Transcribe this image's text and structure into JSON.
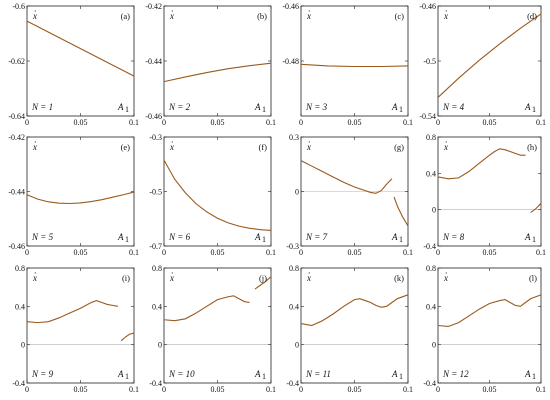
{
  "figure_labels": {
    "xlabel_symbol": "A",
    "xlabel_sub": "1",
    "ylabel_symbol": "x",
    "ylabel_dot": "·",
    "n_prefix": "N = "
  },
  "colors": {
    "series": "#9a5a1e",
    "zero_line": "#b5b5b5",
    "frame": "#222222"
  },
  "chart_data": [
    {
      "panel": "(a)",
      "N": "1",
      "type": "line",
      "xlim": [
        0,
        0.1
      ],
      "ylim": [
        -0.64,
        -0.6
      ],
      "xticks": [
        "0",
        "0.05",
        "0.1"
      ],
      "yticks": [
        "-0.64",
        "-0.62",
        "-0.6"
      ],
      "y_tick_values": [
        -0.64,
        -0.62,
        -0.6
      ],
      "series": [
        {
          "x": [
            0,
            0.02,
            0.04,
            0.06,
            0.08,
            0.1
          ],
          "y": [
            -0.6055,
            -0.6095,
            -0.6135,
            -0.6175,
            -0.6215,
            -0.6255
          ]
        }
      ]
    },
    {
      "panel": "(b)",
      "N": "2",
      "type": "line",
      "xlim": [
        0,
        0.1
      ],
      "ylim": [
        -0.46,
        -0.42
      ],
      "xticks": [
        "0",
        "0.05",
        "0.1"
      ],
      "yticks": [
        "-0.46",
        "-0.44",
        "-0.42"
      ],
      "y_tick_values": [
        -0.46,
        -0.44,
        -0.42
      ],
      "series": [
        {
          "x": [
            0,
            0.02,
            0.04,
            0.06,
            0.08,
            0.1
          ],
          "y": [
            -0.4475,
            -0.4458,
            -0.4442,
            -0.4428,
            -0.4417,
            -0.4408
          ]
        }
      ]
    },
    {
      "panel": "(c)",
      "N": "3",
      "type": "line",
      "xlim": [
        0,
        0.1
      ],
      "ylim": [
        -0.5,
        -0.46
      ],
      "xticks": [
        "0",
        "0.05",
        "0.1"
      ],
      "yticks": [
        "-0.48",
        "-0.46"
      ],
      "y_tick_values": [
        -0.48,
        -0.46
      ],
      "series": [
        {
          "x": [
            0,
            0.025,
            0.05,
            0.075,
            0.1
          ],
          "y": [
            -0.4812,
            -0.4818,
            -0.482,
            -0.482,
            -0.4818
          ]
        }
      ]
    },
    {
      "panel": "(d)",
      "N": "4",
      "type": "line",
      "xlim": [
        0,
        0.1
      ],
      "ylim": [
        -0.54,
        -0.46
      ],
      "xticks": [
        "0",
        "0.05",
        "0.1"
      ],
      "yticks": [
        "-0.54",
        "-0.5",
        "-0.46"
      ],
      "y_tick_values": [
        -0.54,
        -0.5,
        -0.46
      ],
      "series": [
        {
          "x": [
            0,
            0.02,
            0.04,
            0.06,
            0.08,
            0.1
          ],
          "y": [
            -0.5265,
            -0.5125,
            -0.4995,
            -0.4875,
            -0.4762,
            -0.4658
          ]
        }
      ]
    },
    {
      "panel": "(e)",
      "N": "5",
      "type": "line",
      "xlim": [
        0,
        0.1
      ],
      "ylim": [
        -0.46,
        -0.42
      ],
      "xticks": [
        "0",
        "0.05",
        "0.1"
      ],
      "yticks": [
        "-0.46",
        "-0.44",
        "-0.42"
      ],
      "y_tick_values": [
        -0.46,
        -0.44,
        -0.42
      ],
      "series": [
        {
          "x": [
            0,
            0.01,
            0.02,
            0.03,
            0.04,
            0.05,
            0.06,
            0.07,
            0.08,
            0.09,
            0.1
          ],
          "y": [
            -0.4412,
            -0.4428,
            -0.4438,
            -0.4443,
            -0.4444,
            -0.4442,
            -0.4437,
            -0.443,
            -0.4421,
            -0.4412,
            -0.4402
          ]
        }
      ]
    },
    {
      "panel": "(f)",
      "N": "6",
      "type": "line",
      "xlim": [
        0,
        0.1
      ],
      "ylim": [
        -0.7,
        -0.3
      ],
      "xticks": [
        "0",
        "0.05",
        "0.1"
      ],
      "yticks": [
        "-0.7",
        "-0.5",
        "-0.3"
      ],
      "y_tick_values": [
        -0.7,
        -0.5,
        -0.3
      ],
      "series": [
        {
          "x": [
            0,
            0.01,
            0.02,
            0.03,
            0.04,
            0.05,
            0.06,
            0.07,
            0.08,
            0.09,
            0.1
          ],
          "y": [
            -0.385,
            -0.455,
            -0.505,
            -0.545,
            -0.575,
            -0.598,
            -0.615,
            -0.627,
            -0.635,
            -0.64,
            -0.643
          ]
        }
      ]
    },
    {
      "panel": "(g)",
      "N": "7",
      "type": "line",
      "xlim": [
        0,
        0.1
      ],
      "ylim": [
        -0.3,
        0.3
      ],
      "xticks": [
        "0",
        "0.05",
        "0.1"
      ],
      "yticks": [
        "-0.3",
        "0",
        "0.3"
      ],
      "y_tick_values": [
        -0.3,
        0,
        0.3
      ],
      "zero_line": true,
      "series": [
        {
          "x": [
            0,
            0.01,
            0.02,
            0.03,
            0.04,
            0.05,
            0.06,
            0.065,
            0.07,
            0.075,
            0.08,
            0.085
          ],
          "y": [
            0.17,
            0.14,
            0.11,
            0.08,
            0.05,
            0.025,
            0.005,
            -0.005,
            -0.01,
            0.005,
            0.04,
            0.07
          ]
        },
        {
          "x": [
            0.087,
            0.09,
            0.095,
            0.1
          ],
          "y": [
            -0.03,
            -0.08,
            -0.14,
            -0.19
          ]
        }
      ]
    },
    {
      "panel": "(h)",
      "N": "8",
      "type": "line",
      "xlim": [
        0,
        0.1
      ],
      "ylim": [
        -0.4,
        0.8
      ],
      "xticks": [
        "0",
        "0.05",
        "0.1"
      ],
      "yticks": [
        "-0.4",
        "0",
        "0.4",
        "0.8"
      ],
      "y_tick_values": [
        -0.4,
        0,
        0.4,
        0.8
      ],
      "zero_line": true,
      "series": [
        {
          "x": [
            0,
            0.01,
            0.02,
            0.03,
            0.04,
            0.05,
            0.055,
            0.06,
            0.065,
            0.07,
            0.075,
            0.08,
            0.085
          ],
          "y": [
            0.36,
            0.34,
            0.35,
            0.42,
            0.51,
            0.6,
            0.64,
            0.67,
            0.66,
            0.64,
            0.62,
            0.6,
            0.6
          ]
        },
        {
          "x": [
            0.09,
            0.095,
            0.1
          ],
          "y": [
            -0.03,
            0.01,
            0.07
          ]
        }
      ]
    },
    {
      "panel": "(i)",
      "N": "9",
      "type": "line",
      "xlim": [
        0,
        0.1
      ],
      "ylim": [
        -0.4,
        0.8
      ],
      "xticks": [
        "0",
        "0.05",
        "0.1"
      ],
      "yticks": [
        "-0.4",
        "0",
        "0.4",
        "0.8"
      ],
      "y_tick_values": [
        -0.4,
        0,
        0.4,
        0.8
      ],
      "zero_line": true,
      "series": [
        {
          "x": [
            0,
            0.01,
            0.02,
            0.03,
            0.04,
            0.05,
            0.06,
            0.065,
            0.07,
            0.075,
            0.08,
            0.085
          ],
          "y": [
            0.24,
            0.23,
            0.24,
            0.28,
            0.33,
            0.38,
            0.44,
            0.46,
            0.44,
            0.42,
            0.41,
            0.4
          ]
        },
        {
          "x": [
            0.088,
            0.092,
            0.096,
            0.1
          ],
          "y": [
            0.04,
            0.08,
            0.11,
            0.12
          ]
        }
      ]
    },
    {
      "panel": "(j)",
      "N": "10",
      "type": "line",
      "xlim": [
        0,
        0.1
      ],
      "ylim": [
        -0.4,
        0.8
      ],
      "xticks": [
        "0",
        "0.05",
        "0.1"
      ],
      "yticks": [
        "-0.4",
        "0",
        "0.4",
        "0.8"
      ],
      "y_tick_values": [
        -0.4,
        0,
        0.4,
        0.8
      ],
      "zero_line": true,
      "series": [
        {
          "x": [
            0,
            0.01,
            0.02,
            0.03,
            0.04,
            0.05,
            0.06,
            0.065,
            0.07,
            0.075,
            0.08
          ],
          "y": [
            0.26,
            0.25,
            0.27,
            0.33,
            0.4,
            0.47,
            0.5,
            0.51,
            0.48,
            0.45,
            0.44
          ]
        },
        {
          "x": [
            0.085,
            0.09,
            0.095,
            0.1
          ],
          "y": [
            0.58,
            0.62,
            0.66,
            0.71
          ]
        }
      ]
    },
    {
      "panel": "(k)",
      "N": "11",
      "type": "line",
      "xlim": [
        0,
        0.1
      ],
      "ylim": [
        -0.4,
        0.8
      ],
      "xticks": [
        "0",
        "0.05",
        "0.1"
      ],
      "yticks": [
        "-0.4",
        "0",
        "0.4",
        "0.8"
      ],
      "y_tick_values": [
        -0.4,
        0,
        0.4,
        0.8
      ],
      "zero_line": true,
      "series": [
        {
          "x": [
            0,
            0.01,
            0.02,
            0.03,
            0.04,
            0.05,
            0.055,
            0.06,
            0.065,
            0.07,
            0.075,
            0.08,
            0.085,
            0.09,
            0.1
          ],
          "y": [
            0.22,
            0.2,
            0.25,
            0.32,
            0.4,
            0.47,
            0.48,
            0.46,
            0.44,
            0.41,
            0.39,
            0.4,
            0.44,
            0.48,
            0.52
          ]
        }
      ]
    },
    {
      "panel": "(l)",
      "N": "12",
      "type": "line",
      "xlim": [
        0,
        0.1
      ],
      "ylim": [
        -0.4,
        0.8
      ],
      "xticks": [
        "0",
        "0.05",
        "0.1"
      ],
      "yticks": [
        "-0.4",
        "0",
        "0.4",
        "0.8"
      ],
      "y_tick_values": [
        -0.4,
        0,
        0.4,
        0.8
      ],
      "zero_line": true,
      "series": [
        {
          "x": [
            0,
            0.01,
            0.02,
            0.03,
            0.04,
            0.05,
            0.06,
            0.065,
            0.07,
            0.075,
            0.08,
            0.085,
            0.09,
            0.1
          ],
          "y": [
            0.2,
            0.19,
            0.23,
            0.3,
            0.37,
            0.43,
            0.46,
            0.47,
            0.44,
            0.41,
            0.4,
            0.44,
            0.48,
            0.52
          ]
        }
      ]
    }
  ]
}
